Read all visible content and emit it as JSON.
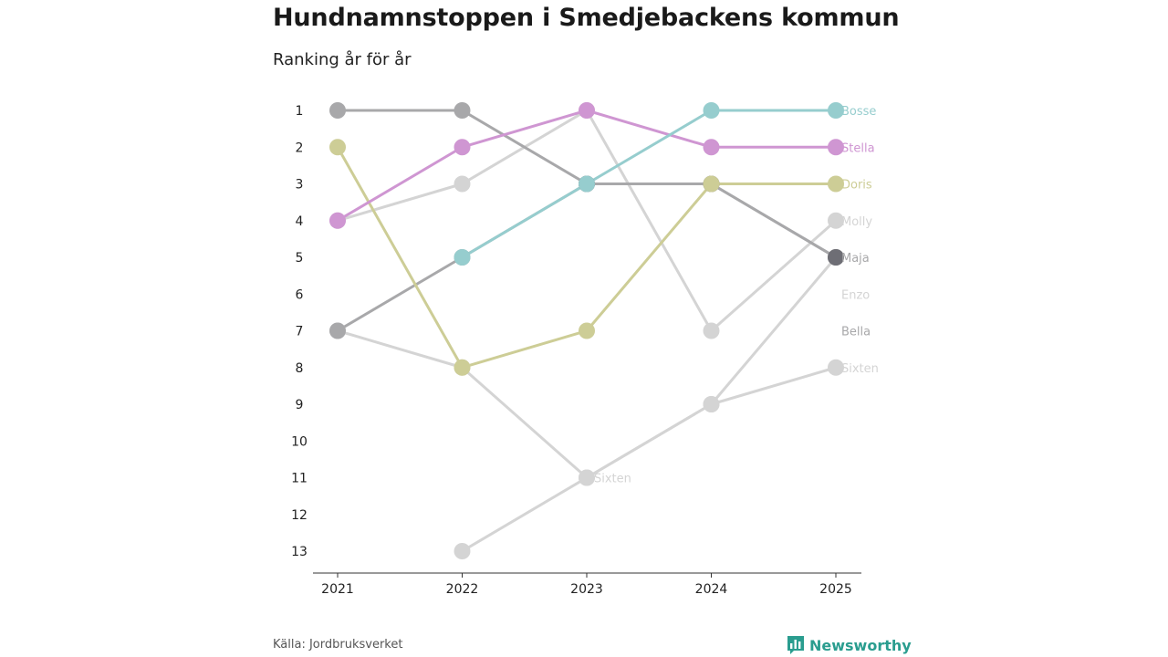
{
  "header": {
    "title": "Hundnamnstoppen i Smedjebackens kommun",
    "subtitle": "Ranking år för år"
  },
  "footer": {
    "source": "Källa: Jordbruksverket",
    "brand": "Newsworthy",
    "brand_icon": "bar-chart-logo-icon"
  },
  "colors": {
    "Bosse": "#96cdce",
    "Stella": "#cf96d2",
    "Doris": "#cdcd96",
    "Maja": "#a8a8aa",
    "Maja_2025": "#6e6e75",
    "Molly": "#d4d4d4",
    "Enzo": "#d4d4d4",
    "Bella": "#a8a8aa",
    "Sixten": "#d4d4d4",
    "axis": "#333333"
  },
  "chart_data": {
    "type": "bump",
    "title": "Hundnamnstoppen i Smedjebackens kommun",
    "subtitle": "Ranking år för år",
    "x": [
      2021,
      2022,
      2023,
      2024,
      2025
    ],
    "x_tick_labels": [
      "2021",
      "2022",
      "2023",
      "2024",
      "2025"
    ],
    "y_tick_labels": [
      "1",
      "2",
      "3",
      "4",
      "5",
      "6",
      "7",
      "8",
      "9",
      "10",
      "11",
      "12",
      "13"
    ],
    "ylim": [
      1,
      13
    ],
    "y_inverted": true,
    "grid": false,
    "series": [
      {
        "name": "Molly",
        "ranks": [
          4,
          3,
          1,
          7,
          4
        ],
        "end_label": "Molly"
      },
      {
        "name": "Enzo",
        "ranks": [
          7,
          8,
          11,
          9,
          5
        ],
        "end_label": "Enzo"
      },
      {
        "name": "Sixten",
        "ranks": [
          null,
          13,
          11,
          9,
          8
        ],
        "end_label": "Sixten",
        "mid_label": {
          "year": 2023,
          "text": "Sixten"
        }
      },
      {
        "name": "Bella",
        "ranks": [
          7,
          5,
          3,
          3,
          5
        ],
        "end_label": "Bella"
      },
      {
        "name": "Maja",
        "ranks": [
          1,
          1,
          3,
          3,
          5
        ],
        "end_label": "Maja"
      },
      {
        "name": "Doris",
        "ranks": [
          2,
          8,
          7,
          3,
          3
        ],
        "end_label": "Doris"
      },
      {
        "name": "Stella",
        "ranks": [
          4,
          2,
          1,
          2,
          2
        ],
        "end_label": "Stella"
      },
      {
        "name": "Bosse",
        "ranks": [
          null,
          5,
          3,
          1,
          1
        ],
        "end_label": "Bosse"
      }
    ],
    "end_labels_order": [
      {
        "text": "Bosse",
        "rank": 1,
        "series": "Bosse"
      },
      {
        "text": "Stella",
        "rank": 2,
        "series": "Stella"
      },
      {
        "text": "Doris",
        "rank": 3,
        "series": "Doris"
      },
      {
        "text": "Molly",
        "rank": 4,
        "series": "Molly"
      },
      {
        "text": "Maja",
        "rank": 5,
        "series": "Maja"
      },
      {
        "text": "Enzo",
        "rank": 6,
        "series": "Enzo"
      },
      {
        "text": "Bella",
        "rank": 7,
        "series": "Bella"
      },
      {
        "text": "Sixten",
        "rank": 8,
        "series": "Sixten"
      }
    ]
  }
}
